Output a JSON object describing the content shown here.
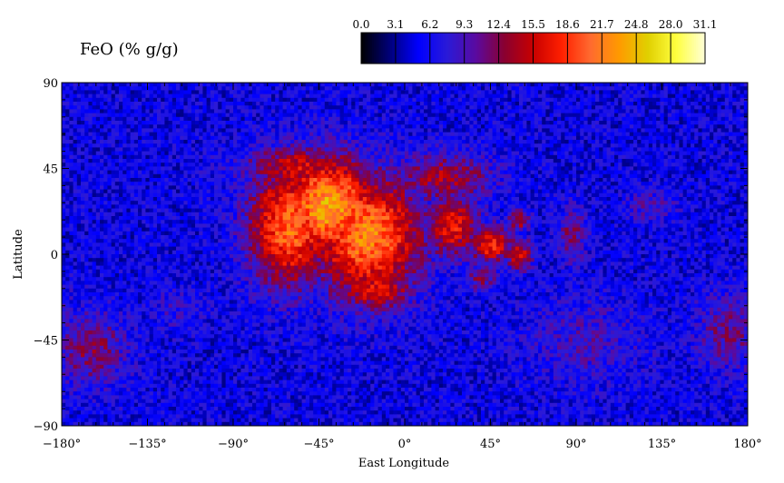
{
  "chart_data": {
    "type": "heatmap",
    "title": "FeO (% g/g)",
    "xlabel": "East Longitude",
    "ylabel": "Latitude",
    "xlim": [
      -180,
      180
    ],
    "ylim": [
      -90,
      90
    ],
    "x_ticks": [
      -180,
      -135,
      -90,
      -45,
      0,
      45,
      90,
      135,
      180
    ],
    "x_tick_labels": [
      "−180°",
      "−135°",
      "−90°",
      "−45°",
      "0°",
      "45°",
      "90°",
      "135°",
      "180°"
    ],
    "y_ticks": [
      90,
      45,
      0,
      -45,
      -90
    ],
    "y_tick_labels": [
      "90",
      "45",
      "0",
      "−45",
      "−90"
    ],
    "colorbar": {
      "range": [
        0,
        31.1
      ],
      "tick_labels": [
        "0.0",
        "3.1",
        "6.2",
        "9.3",
        "12.4",
        "15.5",
        "18.6",
        "21.7",
        "24.8",
        "28.0",
        "31.1"
      ],
      "colors": [
        "#000000",
        "#00007a",
        "#0000ff",
        "#2a1ad8",
        "#5a0aa0",
        "#8a0030",
        "#c80000",
        "#ff2000",
        "#ff6a30",
        "#ff9a00",
        "#e0d000",
        "#ffff40",
        "#ffffd8"
      ]
    },
    "grid": false,
    "background_value": 5.5,
    "regions": [
      {
        "name": "",
        "lon": -40,
        "lat": 25,
        "sigma_lon": 18,
        "sigma_lat": 18,
        "value": 24
      },
      {
        "name": "",
        "lon": -20,
        "lat": 10,
        "sigma_lon": 20,
        "sigma_lat": 22,
        "value": 22
      },
      {
        "name": "",
        "lon": -60,
        "lat": 15,
        "sigma_lon": 15,
        "sigma_lat": 22,
        "value": 21
      },
      {
        "name": "",
        "lon": -55,
        "lat": 45,
        "sigma_lon": 20,
        "sigma_lat": 8,
        "value": 16
      },
      {
        "name": "",
        "lon": -15,
        "lat": -18,
        "sigma_lon": 14,
        "sigma_lat": 8,
        "value": 17
      },
      {
        "name": "",
        "lon": 20,
        "lat": 40,
        "sigma_lon": 18,
        "sigma_lat": 9,
        "value": 14
      },
      {
        "name": "",
        "lon": 25,
        "lat": 15,
        "sigma_lon": 10,
        "sigma_lat": 12,
        "value": 17
      },
      {
        "name": "",
        "lon": 45,
        "lat": 5,
        "sigma_lon": 8,
        "sigma_lat": 7,
        "value": 18
      },
      {
        "name": "",
        "lon": 60,
        "lat": 0,
        "sigma_lon": 5,
        "sigma_lat": 6,
        "value": 16
      },
      {
        "name": "",
        "lon": 60,
        "lat": 18,
        "sigma_lon": 4,
        "sigma_lat": 4,
        "value": 15
      },
      {
        "name": "",
        "lon": 40,
        "lat": -12,
        "sigma_lon": 6,
        "sigma_lat": 5,
        "value": 12
      },
      {
        "name": "",
        "lon": 88,
        "lat": 10,
        "sigma_lon": 5,
        "sigma_lat": 10,
        "value": 12
      },
      {
        "name": "",
        "lon": 130,
        "lat": 25,
        "sigma_lon": 10,
        "sigma_lat": 6,
        "value": 9.5
      },
      {
        "name": "",
        "lon": -165,
        "lat": -50,
        "sigma_lon": 14,
        "sigma_lat": 14,
        "value": 12
      },
      {
        "name": "",
        "lon": 170,
        "lat": -40,
        "sigma_lon": 12,
        "sigma_lat": 14,
        "value": 11
      },
      {
        "name": "",
        "lon": 95,
        "lat": -45,
        "sigma_lon": 22,
        "sigma_lat": 16,
        "value": 9
      },
      {
        "name": "",
        "lon": -120,
        "lat": -30,
        "sigma_lon": 10,
        "sigma_lat": 8,
        "value": 8
      }
    ]
  }
}
